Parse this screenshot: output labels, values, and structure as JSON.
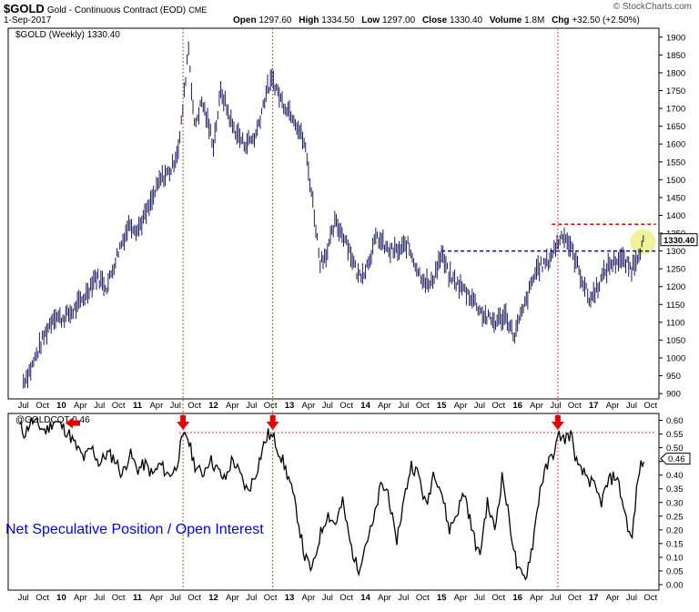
{
  "header": {
    "symbol": "$GOLD",
    "description": "Gold - Continuous Contract (EOD)",
    "exchange": "CME",
    "date": "1-Sep-2017",
    "open_label": "Open",
    "open": "1297.60",
    "high_label": "High",
    "high": "1334.50",
    "low_label": "Low",
    "low": "1297.00",
    "close_label": "Close",
    "close": "1330.40",
    "volume_label": "Volume",
    "volume": "1.8M",
    "chg_label": "Chg",
    "chg": "+32.50 (+2.50%)",
    "watermark": "© StockCharts.com"
  },
  "colors": {
    "bar": "#1a1a5e",
    "ref_blue": "#0000cc",
    "ref_red": "#e60000",
    "arrow": "#e60000",
    "highlight": "#f0f08a",
    "annotation": "#0000ee"
  },
  "chart_data": [
    {
      "type": "line",
      "name": "price",
      "legend": "$GOLD (Weekly) 1330.40",
      "last_value_label": "1330.40",
      "y_ticks": [
        900,
        950,
        1000,
        1050,
        1100,
        1150,
        1200,
        1250,
        1300,
        1350,
        1400,
        1450,
        1500,
        1550,
        1600,
        1650,
        1700,
        1750,
        1800,
        1850,
        1900
      ],
      "ylim": [
        885,
        1925
      ],
      "x_tick_labels": [
        "Jul",
        "Oct",
        "10",
        "Apr",
        "Jul",
        "Oct",
        "11",
        "Apr",
        "Jul",
        "Oct",
        "12",
        "Apr",
        "Jul",
        "Oct",
        "13",
        "Apr",
        "Jul",
        "Oct",
        "14",
        "Apr",
        "Jul",
        "Oct",
        "15",
        "Apr",
        "Jul",
        "Oct",
        "16",
        "Apr",
        "Jul",
        "Oct",
        "17",
        "Apr",
        "Jul",
        "Oct"
      ],
      "x_tick_bold": [
        false,
        false,
        true,
        false,
        false,
        false,
        true,
        false,
        false,
        false,
        true,
        false,
        false,
        false,
        true,
        false,
        false,
        false,
        true,
        false,
        false,
        false,
        true,
        false,
        false,
        false,
        true,
        false,
        false,
        false,
        true,
        false,
        false,
        false
      ],
      "x": [
        2009.5,
        2009.6,
        2009.75,
        2009.9,
        2010.0,
        2010.15,
        2010.3,
        2010.45,
        2010.6,
        2010.75,
        2010.9,
        2011.0,
        2011.15,
        2011.3,
        2011.45,
        2011.55,
        2011.62,
        2011.67,
        2011.75,
        2011.85,
        2012.0,
        2012.1,
        2012.25,
        2012.4,
        2012.55,
        2012.7,
        2012.78,
        2012.9,
        2013.05,
        2013.2,
        2013.3,
        2013.4,
        2013.5,
        2013.6,
        2013.75,
        2013.9,
        2014.0,
        2014.15,
        2014.3,
        2014.45,
        2014.55,
        2014.7,
        2014.85,
        2015.0,
        2015.1,
        2015.25,
        2015.4,
        2015.55,
        2015.7,
        2015.85,
        2015.95,
        2016.1,
        2016.25,
        2016.4,
        2016.52,
        2016.6,
        2016.7,
        2016.8,
        2016.95,
        2017.05,
        2017.2,
        2017.35,
        2017.5,
        2017.58,
        2017.67
      ],
      "close": [
        935,
        970,
        1050,
        1120,
        1110,
        1130,
        1170,
        1230,
        1200,
        1300,
        1380,
        1360,
        1420,
        1500,
        1530,
        1600,
        1750,
        1880,
        1650,
        1720,
        1600,
        1750,
        1650,
        1600,
        1620,
        1750,
        1780,
        1720,
        1680,
        1600,
        1450,
        1270,
        1300,
        1380,
        1330,
        1230,
        1250,
        1340,
        1300,
        1300,
        1320,
        1240,
        1200,
        1290,
        1230,
        1200,
        1170,
        1120,
        1100,
        1120,
        1060,
        1150,
        1250,
        1270,
        1320,
        1350,
        1310,
        1250,
        1160,
        1200,
        1260,
        1280,
        1250,
        1290,
        1330
      ]
    },
    {
      "type": "line",
      "name": "cot",
      "legend": "@GOLDCOT 0.46",
      "last_value_label": "0.46",
      "y_ticks": [
        0.0,
        0.05,
        0.1,
        0.15,
        0.2,
        0.25,
        0.3,
        0.35,
        0.4,
        0.45,
        0.5,
        0.55,
        0.6
      ],
      "ylim": [
        -0.02,
        0.625
      ],
      "annotation": "Net Speculative Position / Open Interest",
      "x": [
        2009.45,
        2009.52,
        2009.6,
        2009.7,
        2009.8,
        2009.9,
        2010.0,
        2010.1,
        2010.2,
        2010.3,
        2010.4,
        2010.5,
        2010.6,
        2010.7,
        2010.8,
        2010.9,
        2011.0,
        2011.1,
        2011.2,
        2011.3,
        2011.4,
        2011.5,
        2011.58,
        2011.65,
        2011.75,
        2011.85,
        2011.95,
        2012.05,
        2012.15,
        2012.25,
        2012.35,
        2012.45,
        2012.55,
        2012.65,
        2012.72,
        2012.8,
        2012.9,
        2013.0,
        2013.1,
        2013.2,
        2013.3,
        2013.4,
        2013.5,
        2013.6,
        2013.7,
        2013.8,
        2013.9,
        2014.0,
        2014.1,
        2014.2,
        2014.3,
        2014.4,
        2014.5,
        2014.6,
        2014.7,
        2014.8,
        2014.9,
        2015.0,
        2015.1,
        2015.2,
        2015.3,
        2015.4,
        2015.5,
        2015.6,
        2015.7,
        2015.8,
        2015.9,
        2016.0,
        2016.1,
        2016.2,
        2016.3,
        2016.4,
        2016.5,
        2016.55,
        2016.6,
        2016.7,
        2016.8,
        2016.9,
        2017.0,
        2017.1,
        2017.2,
        2017.3,
        2017.4,
        2017.5,
        2017.55,
        2017.6,
        2017.67
      ],
      "values": [
        0.58,
        0.55,
        0.6,
        0.58,
        0.56,
        0.6,
        0.58,
        0.55,
        0.5,
        0.46,
        0.5,
        0.44,
        0.48,
        0.46,
        0.4,
        0.48,
        0.42,
        0.44,
        0.4,
        0.44,
        0.4,
        0.42,
        0.52,
        0.55,
        0.44,
        0.4,
        0.46,
        0.42,
        0.38,
        0.46,
        0.4,
        0.34,
        0.4,
        0.5,
        0.55,
        0.53,
        0.46,
        0.38,
        0.26,
        0.1,
        0.05,
        0.18,
        0.26,
        0.22,
        0.3,
        0.15,
        0.05,
        0.15,
        0.22,
        0.36,
        0.34,
        0.15,
        0.3,
        0.44,
        0.4,
        0.28,
        0.42,
        0.34,
        0.2,
        0.26,
        0.34,
        0.2,
        0.1,
        0.3,
        0.2,
        0.4,
        0.22,
        0.05,
        0.02,
        0.15,
        0.36,
        0.44,
        0.5,
        0.55,
        0.53,
        0.55,
        0.42,
        0.4,
        0.36,
        0.3,
        0.38,
        0.4,
        0.28,
        0.15,
        0.3,
        0.42,
        0.46
      ]
    }
  ],
  "markers": {
    "vlines_x": [
      2011.6,
      2012.78,
      2016.53
    ],
    "blue_resistance": {
      "value": 1300,
      "x_from": 2015.0,
      "x_to": 2017.82
    },
    "red_resistance": {
      "value": 1375,
      "x_from": 2016.45,
      "x_to": 2017.82
    },
    "cot_reference": {
      "value": 0.555,
      "x_from": 2011.55,
      "x_to": 2017.82
    },
    "arrows_down_x": [
      2011.6,
      2012.78,
      2016.53
    ],
    "arrow_left_x": 2010.15,
    "arrow_left_value": 0.59,
    "highlight": {
      "x": 2017.65,
      "value": 1325
    }
  }
}
